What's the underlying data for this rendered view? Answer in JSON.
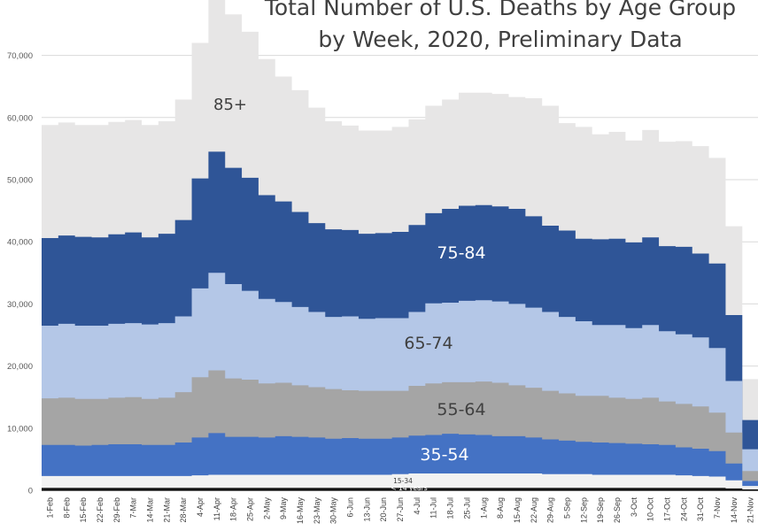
{
  "chart_data": {
    "type": "area",
    "title": "Total Number of U.S. Deaths by Age Group by Week, 2020, Preliminary Data",
    "title_lines": [
      "Total Number of U.S. Deaths by Age Group",
      "by Week, 2020, Preliminary Data"
    ],
    "stacked": true,
    "step": true,
    "grid": true,
    "legend": "none",
    "xlabel": "",
    "ylabel": "",
    "ylim": [
      0,
      80000
    ],
    "yticks": [
      "0",
      "10,000",
      "20,000",
      "30,000",
      "40,000",
      "50,000",
      "60,000",
      "70,000"
    ],
    "categories": [
      "1-Feb",
      "8-Feb",
      "15-Feb",
      "22-Feb",
      "29-Feb",
      "7-Mar",
      "14-Mar",
      "21-Mar",
      "28-Mar",
      "4-Apr",
      "11-Apr",
      "18-Apr",
      "25-Apr",
      "2-May",
      "9-May",
      "16-May",
      "23-May",
      "30-May",
      "6-Jun",
      "13-Jun",
      "20-Jun",
      "27-Jun",
      "4-Jul",
      "11-Jul",
      "18-Jul",
      "25-Jul",
      "1-Aug",
      "8-Aug",
      "15-Aug",
      "22-Aug",
      "29-Aug",
      "5-Sep",
      "12-Sep",
      "19-Sep",
      "26-Sep",
      "3-Oct",
      "10-Oct",
      "17-Oct",
      "24-Oct",
      "31-Oct",
      "7-Nov",
      "14-Nov",
      "21-Nov"
    ],
    "xticks_shown": [
      "1-Feb",
      "8-Feb",
      "15-Feb",
      "22-Feb",
      "29-Feb",
      "7-Mar",
      "14-Mar",
      "21-Mar",
      "28-Mar",
      "4-Apr",
      "11-Apr",
      "18-Apr",
      "25-Apr",
      "2-May",
      "9-May",
      "16-May",
      "23-May",
      "30-May",
      "6-Jun",
      "13-Jun",
      "20-Jun",
      "27-Jun",
      "4-Jul",
      "11-Jul",
      "18-Jul",
      "25-Jul",
      "1-Aug",
      "8-Aug",
      "15-Aug",
      "22-Aug",
      "29-Aug",
      "5-Sep",
      "12-Sep",
      "19-Sep",
      "26-Sep",
      "3-Oct",
      "10-Oct",
      "17-Oct",
      "24-Oct",
      "31-Oct",
      "7-Nov",
      "14-Nov",
      "21-Nov"
    ],
    "cumulative_series": [
      {
        "name": "0-14 years",
        "label": "< 14 years",
        "color": "#1a1a1a",
        "values": [
          400,
          400,
          400,
          400,
          400,
          400,
          400,
          400,
          400,
          400,
          400,
          400,
          400,
          400,
          400,
          400,
          400,
          400,
          400,
          400,
          400,
          400,
          400,
          400,
          400,
          400,
          400,
          400,
          400,
          400,
          400,
          400,
          400,
          400,
          400,
          400,
          400,
          400,
          400,
          400,
          400,
          300,
          150
        ]
      },
      {
        "name": "15-34",
        "label": "15-34",
        "color": "#f2f2f2",
        "values": [
          2300,
          2300,
          2300,
          2300,
          2300,
          2300,
          2300,
          2300,
          2300,
          2400,
          2500,
          2500,
          2500,
          2500,
          2500,
          2500,
          2500,
          2500,
          2500,
          2500,
          2500,
          2600,
          2700,
          2700,
          2700,
          2700,
          2700,
          2700,
          2700,
          2700,
          2600,
          2600,
          2600,
          2500,
          2500,
          2500,
          2500,
          2500,
          2400,
          2300,
          2200,
          1600,
          700
        ]
      },
      {
        "name": "35-54",
        "label": "35-54",
        "color": "#4472c4",
        "values": [
          7300,
          7300,
          7200,
          7300,
          7400,
          7400,
          7300,
          7300,
          7700,
          8500,
          9200,
          8600,
          8600,
          8500,
          8700,
          8600,
          8500,
          8300,
          8400,
          8300,
          8300,
          8500,
          8800,
          8900,
          9100,
          9000,
          8900,
          8700,
          8700,
          8500,
          8200,
          8000,
          7800,
          7700,
          7600,
          7500,
          7400,
          7300,
          6900,
          6700,
          6300,
          4300,
          1500
        ]
      },
      {
        "name": "55-64",
        "label": "55-64",
        "color": "#a5a5a5",
        "values": [
          14800,
          14900,
          14700,
          14700,
          14900,
          15000,
          14700,
          14900,
          15800,
          18200,
          19300,
          18000,
          17800,
          17200,
          17300,
          16900,
          16600,
          16300,
          16100,
          16000,
          16000,
          16000,
          16800,
          17200,
          17400,
          17400,
          17500,
          17300,
          16900,
          16500,
          16000,
          15600,
          15200,
          15200,
          14900,
          14700,
          14900,
          14300,
          13900,
          13500,
          12500,
          9300,
          3100
        ]
      },
      {
        "name": "65-74",
        "label": "65-74",
        "color": "#b4c7e7",
        "values": [
          26500,
          26800,
          26500,
          26500,
          26800,
          26900,
          26700,
          26900,
          28000,
          32500,
          35000,
          33200,
          32100,
          30800,
          30300,
          29500,
          28700,
          27900,
          28000,
          27600,
          27700,
          27700,
          28700,
          30100,
          30200,
          30500,
          30600,
          30400,
          30000,
          29400,
          28700,
          27900,
          27200,
          26600,
          26600,
          26100,
          26600,
          25600,
          25100,
          24600,
          22900,
          17600,
          6600
        ]
      },
      {
        "name": "75-84",
        "label": "75-84",
        "color": "#2f5597",
        "values": [
          40600,
          41000,
          40800,
          40700,
          41200,
          41500,
          40700,
          41300,
          43500,
          50200,
          54500,
          51900,
          50300,
          47500,
          46500,
          44800,
          43000,
          42000,
          41900,
          41300,
          41400,
          41600,
          42700,
          44600,
          45300,
          45800,
          45900,
          45700,
          45300,
          44100,
          42600,
          41800,
          40500,
          40400,
          40500,
          39900,
          40700,
          39300,
          39200,
          38100,
          36500,
          28200,
          11300
        ]
      },
      {
        "name": "85+",
        "label": "85+",
        "color": "#e7e6e6",
        "values": [
          58800,
          59200,
          58800,
          58800,
          59300,
          59600,
          58800,
          59400,
          62900,
          72000,
          79900,
          76600,
          73800,
          69400,
          66600,
          64400,
          61600,
          59400,
          58700,
          57900,
          57900,
          58500,
          59700,
          61900,
          62900,
          64000,
          64000,
          63800,
          63300,
          63100,
          61900,
          59100,
          58500,
          57300,
          57700,
          56300,
          58000,
          56100,
          56200,
          55400,
          53500,
          42500,
          17900
        ]
      }
    ],
    "annotations": [
      {
        "text": "85+",
        "series": "85+"
      },
      {
        "text": "75-84",
        "series": "75-84"
      },
      {
        "text": "65-74",
        "series": "65-74"
      },
      {
        "text": "55-64",
        "series": "55-64"
      },
      {
        "text": "35-54",
        "series": "35-54"
      },
      {
        "text": "15-34",
        "series": "15-34"
      },
      {
        "text": "< 14 years",
        "series": "0-14 years"
      }
    ]
  }
}
